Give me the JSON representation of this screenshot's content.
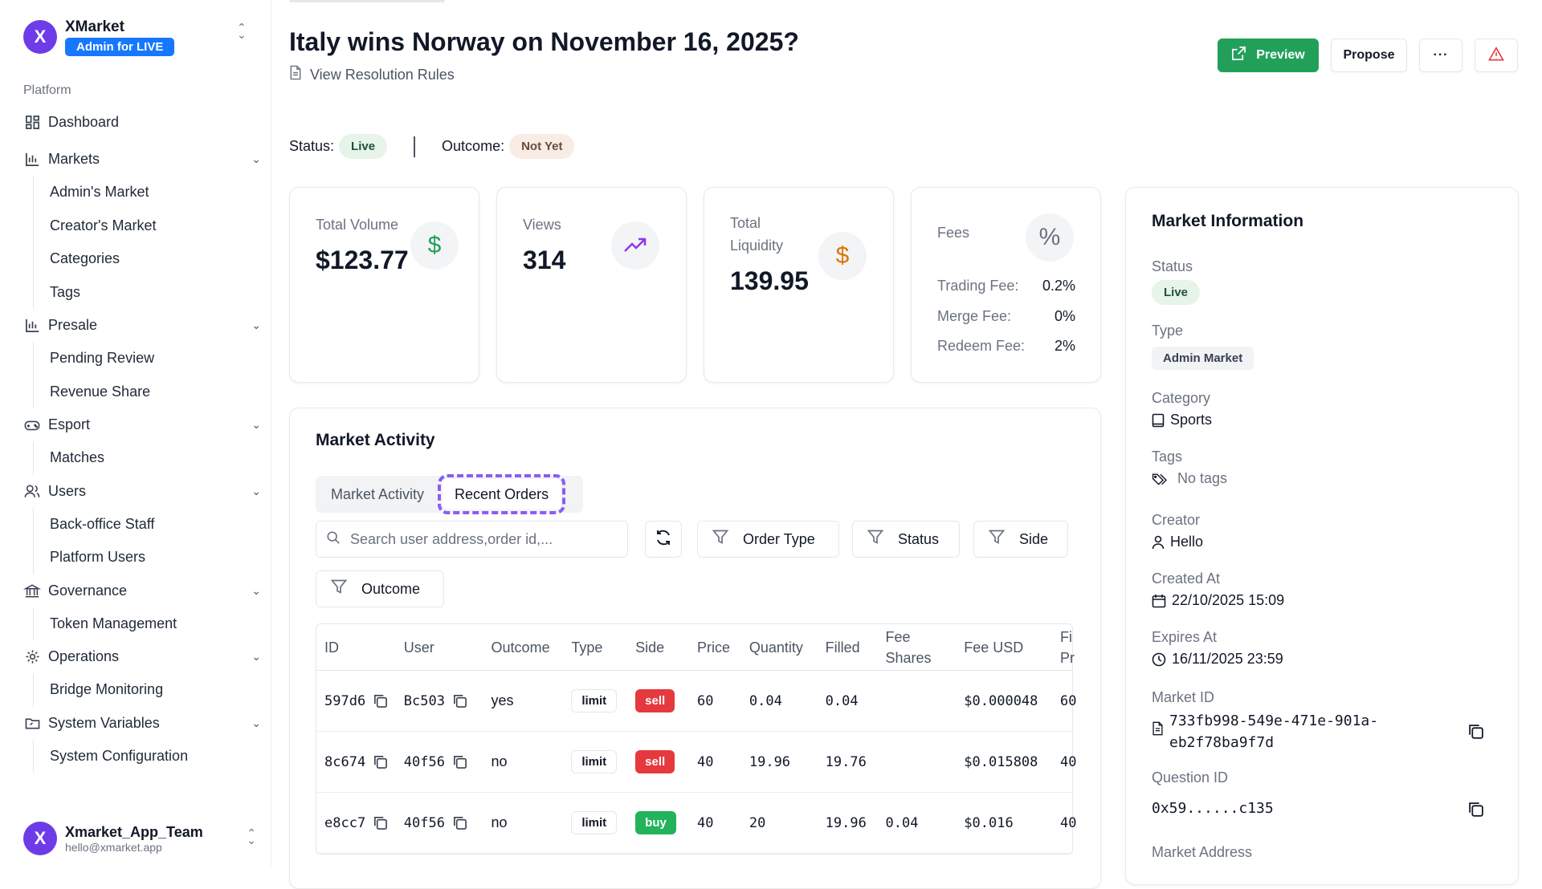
{
  "brand": {
    "name": "XMarket",
    "badge": "Admin for LIVE",
    "logo": "X"
  },
  "sidebar": {
    "section": "Platform",
    "items": [
      {
        "label": "Dashboard",
        "icon": "dashboard-icon",
        "children": []
      },
      {
        "label": "Markets",
        "icon": "chart-icon",
        "children": [
          "Admin's Market",
          "Creator's Market",
          "Categories",
          "Tags"
        ]
      },
      {
        "label": "Presale",
        "icon": "chart-icon",
        "children": [
          "Pending Review",
          "Revenue Share"
        ]
      },
      {
        "label": "Esport",
        "icon": "gamepad-icon",
        "children": [
          "Matches"
        ]
      },
      {
        "label": "Users",
        "icon": "users-icon",
        "children": [
          "Back-office Staff",
          "Platform Users"
        ]
      },
      {
        "label": "Governance",
        "icon": "bank-icon",
        "children": [
          "Token Management"
        ]
      },
      {
        "label": "Operations",
        "icon": "gear-icon",
        "children": [
          "Bridge Monitoring"
        ]
      },
      {
        "label": "System Variables",
        "icon": "folder-icon",
        "children": [
          "System Configuration"
        ]
      }
    ]
  },
  "user": {
    "name": "Xmarket_App_Team",
    "email": "hello@xmarket.app"
  },
  "header": {
    "title": "Italy wins Norway on November 16, 2025?",
    "rules_link": "View Resolution Rules",
    "preview": "Preview",
    "propose": "Propose",
    "more": "···"
  },
  "status": {
    "status_label": "Status:",
    "status_value": "Live",
    "outcome_label": "Outcome:",
    "outcome_value": "Not Yet"
  },
  "stats": {
    "volume": {
      "label": "Total Volume",
      "value": "$123.77"
    },
    "views": {
      "label": "Views",
      "value": "314"
    },
    "liquidity": {
      "label": "Total Liquidity",
      "value": "139.95"
    },
    "fees": {
      "label": "Fees",
      "rows": [
        {
          "k": "Trading Fee:",
          "v": "0.2%"
        },
        {
          "k": "Merge Fee:",
          "v": "0%"
        },
        {
          "k": "Redeem Fee:",
          "v": "2%"
        }
      ]
    }
  },
  "activity": {
    "title": "Market Activity",
    "tabs": [
      "Market Activity",
      "Recent Orders"
    ],
    "search_placeholder": "Search user address,order id,...",
    "filters": [
      "Order Type",
      "Status",
      "Side",
      "Outcome"
    ],
    "columns": [
      "ID",
      "User",
      "Outcome",
      "Type",
      "Side",
      "Price",
      "Quantity",
      "Filled",
      "Fee Shares",
      "Fee USD",
      "Fi Pr"
    ],
    "rows": [
      {
        "id": "597d6",
        "user": "Bc503",
        "outcome": "yes",
        "type": "limit",
        "side": "sell",
        "price": "60",
        "qty": "0.04",
        "filled": "0.04",
        "fee_shares": "",
        "fee_usd": "$0.000048",
        "fill_price": "60"
      },
      {
        "id": "8c674",
        "user": "40f56",
        "outcome": "no",
        "type": "limit",
        "side": "sell",
        "price": "40",
        "qty": "19.96",
        "filled": "19.76",
        "fee_shares": "",
        "fee_usd": "$0.015808",
        "fill_price": "40"
      },
      {
        "id": "e8cc7",
        "user": "40f56",
        "outcome": "no",
        "type": "limit",
        "side": "buy",
        "price": "40",
        "qty": "20",
        "filled": "19.96",
        "fee_shares": "0.04",
        "fee_usd": "$0.016",
        "fill_price": "40"
      }
    ]
  },
  "info": {
    "title": "Market Information",
    "status_label": "Status",
    "status_value": "Live",
    "type_label": "Type",
    "type_value": "Admin Market",
    "category_label": "Category",
    "category_value": "Sports",
    "tags_label": "Tags",
    "tags_value": "No tags",
    "creator_label": "Creator",
    "creator_value": "Hello",
    "created_label": "Created At",
    "created_value": "22/10/2025 15:09",
    "expires_label": "Expires At",
    "expires_value": "16/11/2025 23:59",
    "market_id_label": "Market ID",
    "market_id_line1": "733fb998-549e-471e-901a-",
    "market_id_line2": "eb2f78ba9f7d",
    "question_id_label": "Question ID",
    "question_id_value": "0x59......c135",
    "address_label": "Market Address"
  },
  "colors": {
    "brand": "#6d3ce8",
    "badge": "#1677ff",
    "preview": "#22a05a",
    "sell": "#e5393e",
    "buy": "#22b35c",
    "focus": "#8b5cf6"
  }
}
